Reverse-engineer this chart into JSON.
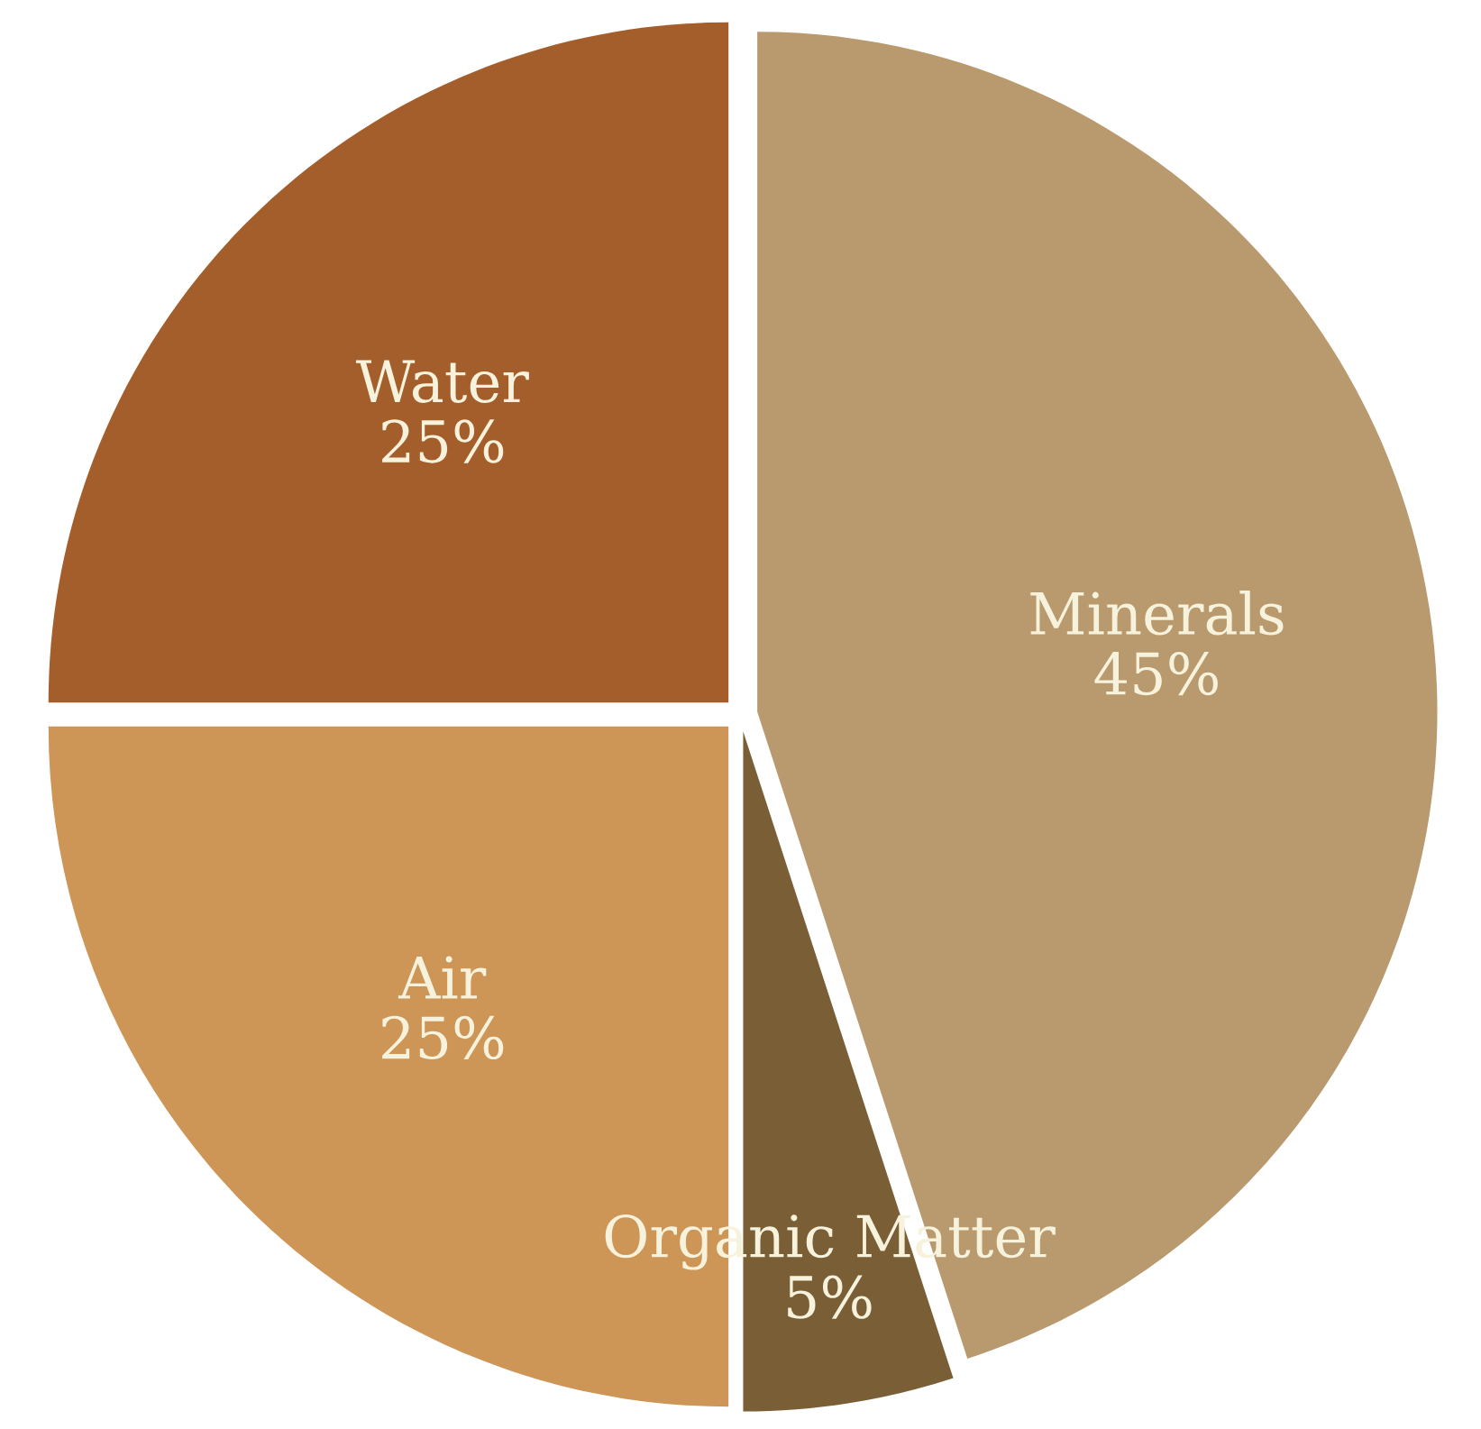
{
  "chart_data": {
    "type": "pie",
    "categories": [
      "Minerals",
      "Organic Matter",
      "Air",
      "Water"
    ],
    "values": [
      45,
      5,
      25,
      25
    ],
    "value_labels": [
      "45%",
      "5%",
      "25%",
      "25%"
    ],
    "colors": [
      "#b99a6e",
      "#7a5e35",
      "#cd9556",
      "#a45e2c"
    ]
  }
}
